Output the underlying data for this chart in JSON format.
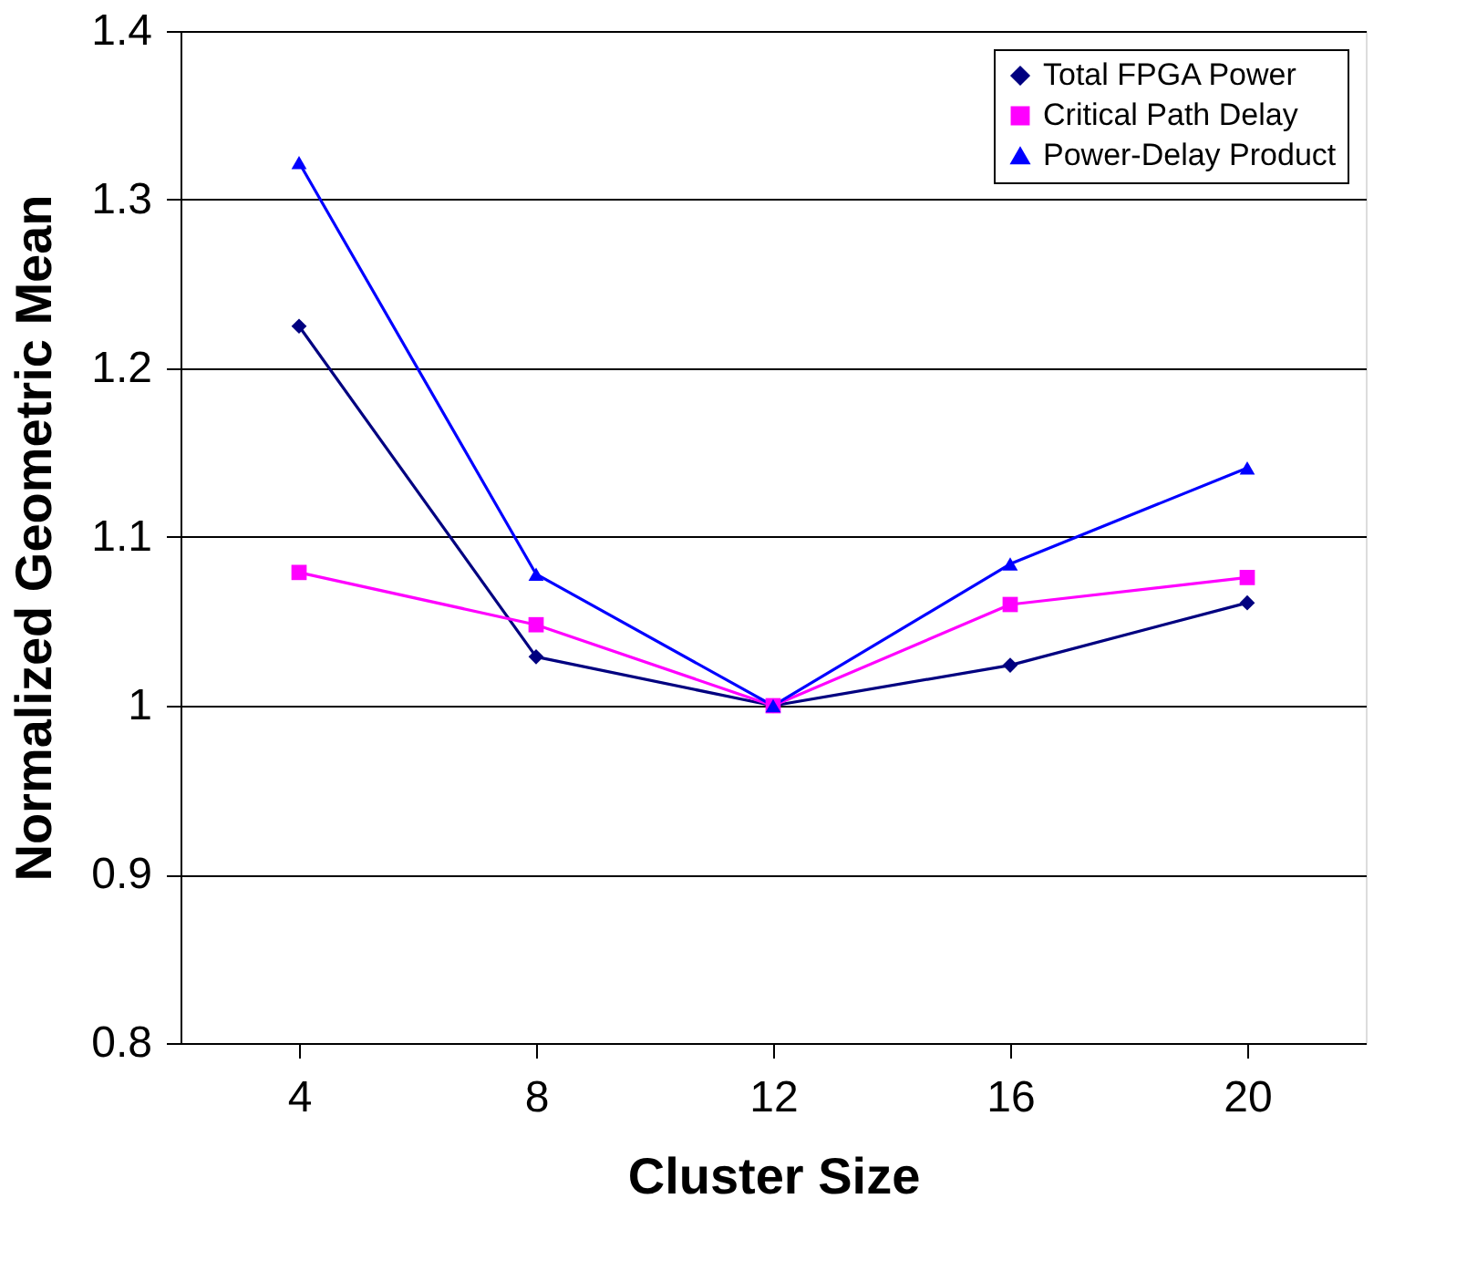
{
  "chart_data": {
    "type": "line",
    "xlabel": "Cluster Size",
    "ylabel": "Normalized Geometric Mean",
    "categories": [
      "4",
      "8",
      "12",
      "16",
      "20"
    ],
    "ylim": [
      0.8,
      1.4
    ],
    "yticks": [
      {
        "value": 0.8,
        "label": "0.8"
      },
      {
        "value": 0.9,
        "label": "0.9"
      },
      {
        "value": 1.0,
        "label": "1"
      },
      {
        "value": 1.1,
        "label": "1.1"
      },
      {
        "value": 1.2,
        "label": "1.2"
      },
      {
        "value": 1.3,
        "label": "1.3"
      },
      {
        "value": 1.4,
        "label": "1.4"
      }
    ],
    "grid": "y",
    "legend": "top right",
    "line_style": "solid",
    "series": [
      {
        "name": "Total FPGA Power",
        "color": "#000080",
        "marker": "diamond",
        "values": [
          1.225,
          1.029,
          1.0,
          1.024,
          1.061
        ]
      },
      {
        "name": "Critical Path Delay",
        "color": "#ff00ff",
        "marker": "square",
        "values": [
          1.079,
          1.048,
          1.0,
          1.06,
          1.076
        ]
      },
      {
        "name": "Power-Delay Product",
        "color": "#0000ff",
        "marker": "triangle",
        "values": [
          1.322,
          1.078,
          1.0,
          1.084,
          1.141
        ]
      }
    ]
  }
}
